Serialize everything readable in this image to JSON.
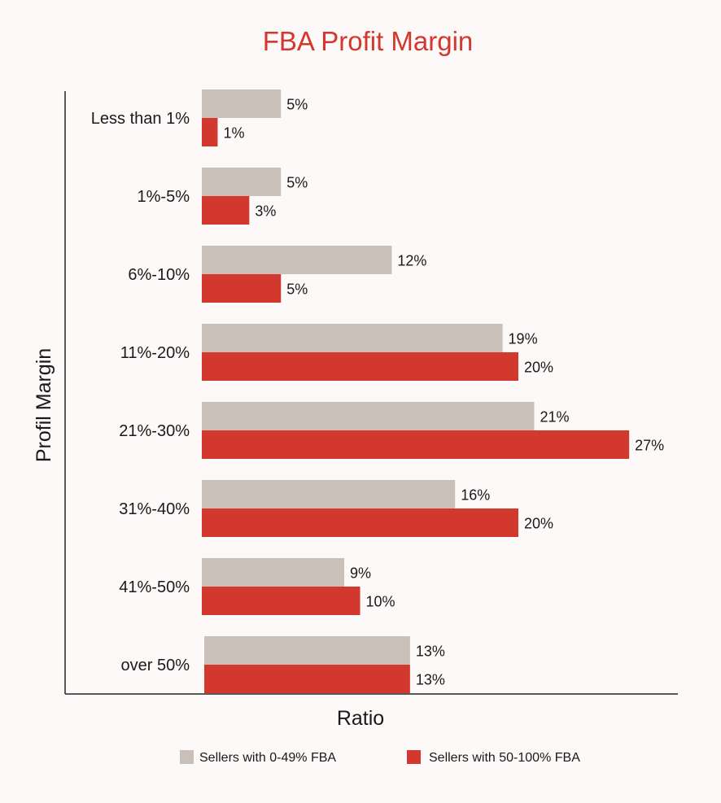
{
  "chart_data": {
    "type": "bar",
    "orientation": "horizontal",
    "title": "FBA Profit Margin",
    "xlabel": "Ratio",
    "ylabel": "Profil Margin",
    "categories": [
      "Less than 1%",
      "1%-5%",
      "6%-10%",
      "11%-20%",
      "21%-30%",
      "31%-40%",
      "41%-50%",
      "over 50%"
    ],
    "series": [
      {
        "name": "Sellers with 0-49% FBA",
        "color": "#c9c0b9",
        "values": [
          5,
          5,
          12,
          19,
          21,
          16,
          9,
          13
        ],
        "labels": [
          "5%",
          "5%",
          "12%",
          "19%",
          "21%",
          "16%",
          "9%",
          "13%"
        ]
      },
      {
        "name": "Sellers with 50-100% FBA",
        "color": "#d2382d",
        "values": [
          1,
          3,
          5,
          20,
          27,
          20,
          10,
          13
        ],
        "labels": [
          "1%",
          "3%",
          "5%",
          "20%",
          "27%",
          "20%",
          "10%",
          "13%"
        ]
      }
    ],
    "xlim": [
      0,
      30
    ],
    "grid": false,
    "legend_position": "bottom",
    "title_color": "#d2382d"
  }
}
